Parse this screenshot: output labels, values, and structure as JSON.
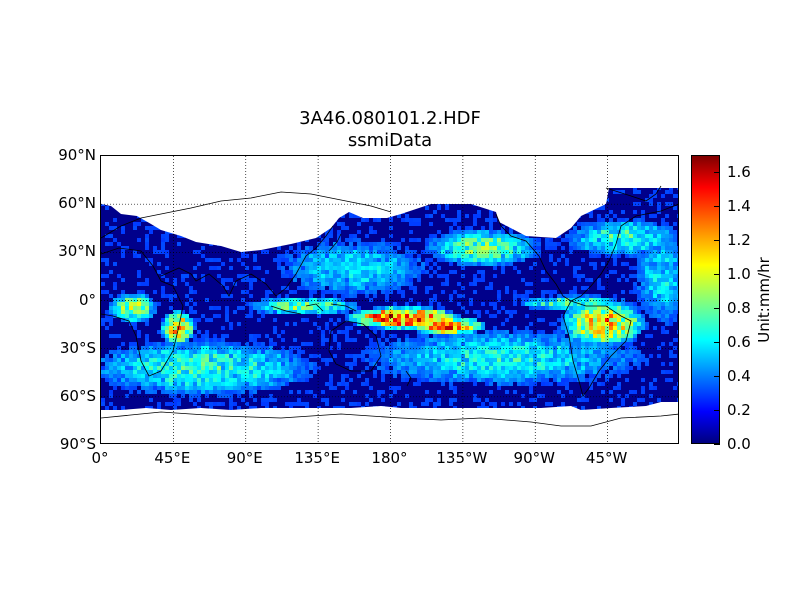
{
  "title": "3A46.080101.2.HDF",
  "subtitle": "ssmiData",
  "lat_labels": [
    "90°N",
    "60°N",
    "30°N",
    "0°",
    "30°S",
    "60°S",
    "90°S"
  ],
  "lat_values": [
    90,
    60,
    30,
    0,
    -30,
    -60,
    -90
  ],
  "lon_labels": [
    "0°",
    "45°E",
    "90°E",
    "135°E",
    "180°",
    "135°W",
    "90°W",
    "45°W"
  ],
  "lon_values": [
    0,
    45,
    90,
    135,
    180,
    225,
    270,
    315
  ],
  "colorbar": {
    "label": "Unit:mm/hr",
    "ticks": [
      "0.0",
      "0.2",
      "0.4",
      "0.6",
      "0.8",
      "1.0",
      "1.2",
      "1.4",
      "1.6"
    ],
    "min": 0.0,
    "max": 1.7,
    "colormap": "jet"
  },
  "colors": {
    "ocean_base": "#00008b",
    "no_data": "#ffffff",
    "coastline": "#000000"
  }
}
